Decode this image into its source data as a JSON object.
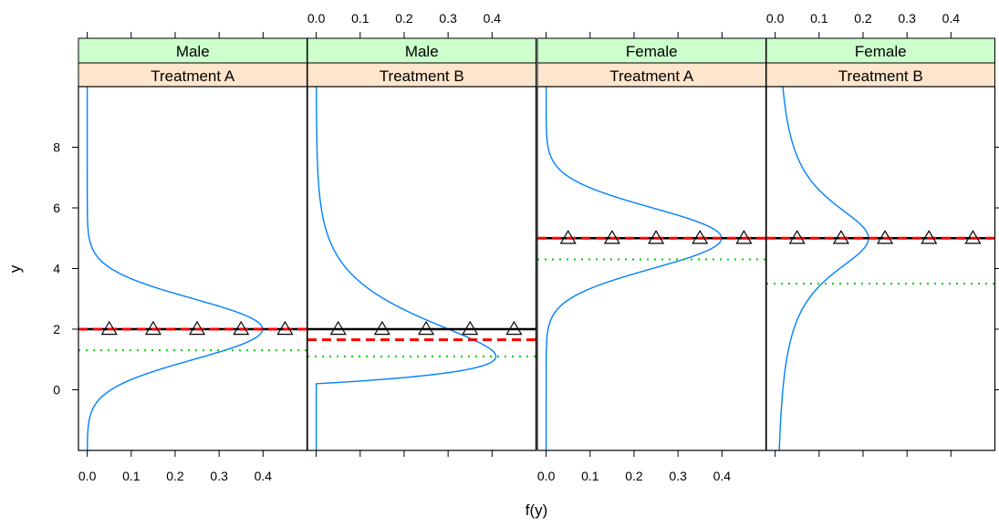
{
  "chart_data": {
    "type": "line",
    "xlabel": "f(y)",
    "ylabel": "y",
    "xlim": [
      -0.02,
      0.5
    ],
    "ylim": [
      -2,
      10
    ],
    "x_ticks": [
      0.0,
      0.1,
      0.2,
      0.3,
      0.4
    ],
    "x_tick_labels": [
      "0.0",
      "0.1",
      "0.2",
      "0.3",
      "0.4"
    ],
    "y_ticks": [
      0,
      2,
      4,
      6,
      8
    ],
    "y_tick_labels": [
      "0",
      "2",
      "4",
      "6",
      "8"
    ],
    "grid": false,
    "legend": "none",
    "colors": {
      "density": "#0080ff",
      "reference_line": "#000000",
      "dashed_line": "#ff0000",
      "dotted_line": "#00cc00",
      "strip_top": "#ccffcc",
      "strip_bottom": "#ffe5cc"
    },
    "marker_x": [
      0.05,
      0.15,
      0.25,
      0.35,
      0.45
    ],
    "panels": [
      {
        "strip_top": "Male",
        "strip_bottom": "Treatment A",
        "density": {
          "kind": "normal",
          "mu": 2.0,
          "sigma": 1.0
        },
        "solid_y": 2.0,
        "dashed_y": 2.0,
        "dotted_y": 1.3,
        "markers_y": 2.0
      },
      {
        "strip_top": "Male",
        "strip_bottom": "Treatment B",
        "density": {
          "kind": "gamma-shifted",
          "shift": 0.2,
          "shape": 2.0,
          "scale": 0.9
        },
        "solid_y": 2.0,
        "dashed_y": 1.65,
        "dotted_y": 1.1,
        "markers_y": 2.0
      },
      {
        "strip_top": "Female",
        "strip_bottom": "Treatment A",
        "density": {
          "kind": "normal",
          "mu": 5.0,
          "sigma": 1.0
        },
        "solid_y": 5.0,
        "dashed_y": 5.0,
        "dotted_y": 4.3,
        "markers_y": 5.0
      },
      {
        "strip_top": "Female",
        "strip_bottom": "Treatment B",
        "density": {
          "kind": "t",
          "mu": 5.0,
          "scale": 1.5,
          "df": 1
        },
        "solid_y": 5.0,
        "dashed_y": 5.0,
        "dotted_y": 3.5,
        "markers_y": 5.0
      }
    ]
  }
}
